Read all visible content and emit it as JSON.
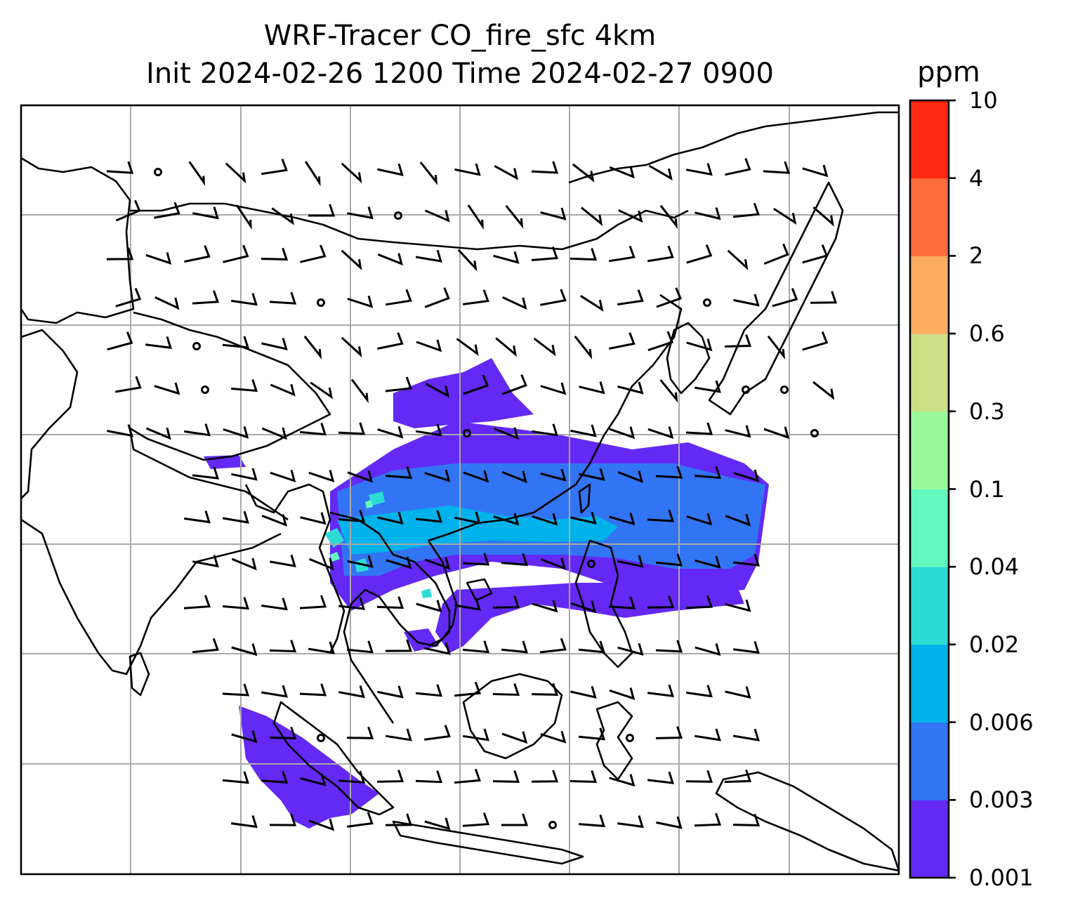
{
  "title_line1": "WRF-Tracer CO_fire_sfc 4km",
  "title_line2": "Init 2024-02-26 1200 Time 2024-02-27 0900",
  "colorbar": {
    "unit": "ppm",
    "levels": [
      "0.001",
      "0.003",
      "0.006",
      "0.02",
      "0.04",
      "0.1",
      "0.3",
      "0.6",
      "2",
      "4",
      "10"
    ],
    "colors": [
      "#6429f5",
      "#3275f4",
      "#00b2ea",
      "#2ddbd5",
      "#64f9bf",
      "#9afa9a",
      "#cddf86",
      "#fdac62",
      "#ff6e3c",
      "#ff2813"
    ]
  },
  "map": {
    "gridlines": true,
    "coastline_color": "#000000",
    "gridline_color": "#aaaaaa",
    "plume_color_low": "#6429f5",
    "plume_color_mid": "#3275f4",
    "plume_color_high": "#00b2ea",
    "wind_barb_color": "#000000"
  }
}
